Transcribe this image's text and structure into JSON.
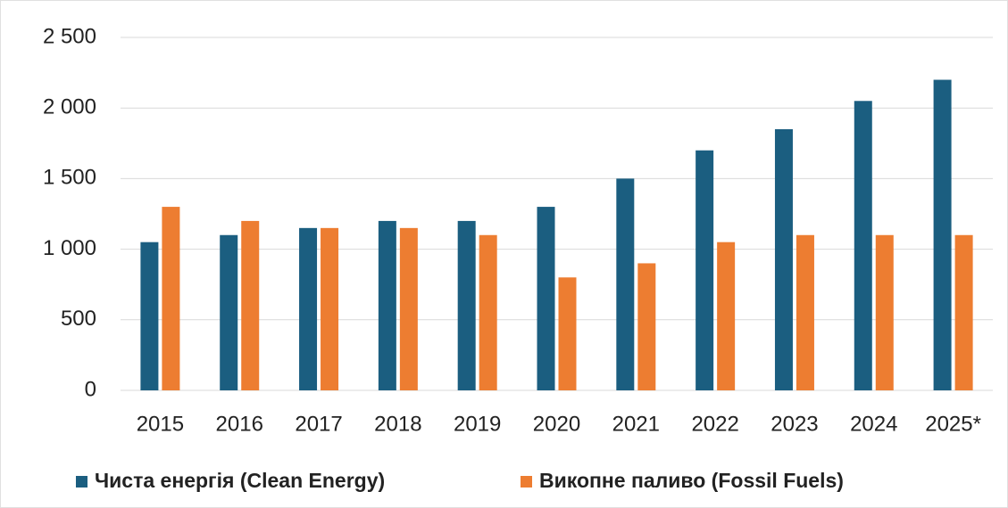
{
  "chart_data": {
    "type": "bar",
    "categories": [
      "2015",
      "2016",
      "2017",
      "2018",
      "2019",
      "2020",
      "2021",
      "2022",
      "2023",
      "2024",
      "2025*"
    ],
    "series": [
      {
        "name": "Чиста енергія (Clean Energy)",
        "color": "#1b5e80",
        "values": [
          1050,
          1100,
          1150,
          1200,
          1200,
          1300,
          1500,
          1700,
          1850,
          2050,
          2200
        ]
      },
      {
        "name": "Викопне паливо (Fossil Fuels)",
        "color": "#ed7d31",
        "values": [
          1300,
          1200,
          1150,
          1150,
          1100,
          800,
          900,
          1050,
          1100,
          1100,
          1100
        ]
      }
    ],
    "ylim": [
      0,
      2500
    ],
    "yticks": [
      0,
      500,
      {
        "value": 1000,
        "label": "1 000"
      },
      {
        "value": 1500,
        "label": "1 500"
      },
      {
        "value": 2000,
        "label": "2 000"
      },
      {
        "value": 2500,
        "label": "2 500"
      }
    ],
    "grid": true,
    "legend": "bottom"
  }
}
